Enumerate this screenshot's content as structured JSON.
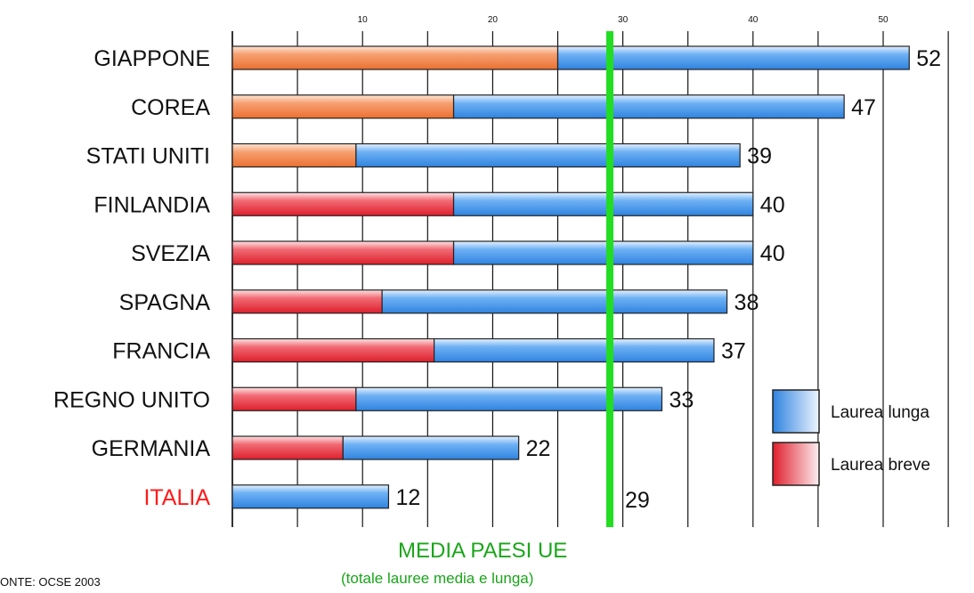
{
  "chart_data": {
    "type": "bar",
    "orientation": "horizontal",
    "stacked": true,
    "title": "",
    "xlim": [
      0,
      55
    ],
    "x_ticks": [
      10,
      20,
      30,
      40,
      50
    ],
    "categories": [
      "GIAPPONE",
      "COREA",
      "STATI UNITI",
      "FINLANDIA",
      "SVEZIA",
      "SPAGNA",
      "FRANCIA",
      "REGNO UNITO",
      "GERMANIA",
      "ITALIA"
    ],
    "totals": [
      52,
      47,
      39,
      40,
      40,
      38,
      37,
      33,
      22,
      12
    ],
    "series": [
      {
        "name": "Laurea breve",
        "values": [
          25,
          17,
          9.5,
          17,
          17,
          11.5,
          15.5,
          9.5,
          8.5,
          0
        ]
      },
      {
        "name": "Laurea lunga",
        "values": [
          27,
          30,
          29.5,
          23,
          23,
          26.5,
          21.5,
          23.5,
          13.5,
          12
        ]
      }
    ],
    "short_bar_fill": {
      "COREA": "orange",
      "GIAPPONE": "orange",
      "STATI UNITI": "orange",
      "default": "red"
    },
    "highlight_category": "ITALIA",
    "reference_line": {
      "value": 29,
      "label": "29"
    },
    "legend": {
      "position": "right",
      "items": [
        "Laurea lunga",
        "Laurea breve"
      ]
    },
    "grid": true,
    "xlabel": "MEDIA PAESI UE",
    "xlabel_sub": "(totale lauree media e lunga)",
    "source": "ONTE: OCSE 2003",
    "colors": {
      "lunga_dark": "#3a8ee8",
      "lunga_light": "#e6f1ff",
      "breve_dark": "#e8232e",
      "breve_light": "#fde4e6",
      "orange_dark": "#f07a34",
      "orange_light": "#fde6d6",
      "reference": "#22dd22",
      "highlight_text": "#ff1a1a",
      "reference_text": "#1aa61a"
    }
  }
}
